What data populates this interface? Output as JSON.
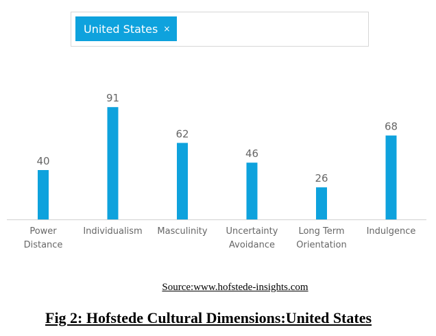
{
  "selector": {
    "tag_label": "United States",
    "remove_glyph": "×"
  },
  "chart_data": {
    "type": "bar",
    "categories": [
      [
        "Power",
        "Distance"
      ],
      [
        "Individualism"
      ],
      [
        "Masculinity"
      ],
      [
        "Uncertainty",
        "Avoidance"
      ],
      [
        "Long Term",
        "Orientation"
      ],
      [
        "Indulgence"
      ]
    ],
    "values": [
      40,
      91,
      62,
      46,
      26,
      68
    ],
    "ylim": [
      0,
      100
    ],
    "grid": false,
    "legend": "none",
    "bar_color": "#0ea2dd",
    "value_label_color": "#666666",
    "category_label_color": "#666666",
    "baseline_color": "#d0d0d0"
  },
  "caption": {
    "source": "Source:www.hofstede-insights.com",
    "figure": "Fig 2: Hofstede Cultural Dimensions:United States"
  }
}
